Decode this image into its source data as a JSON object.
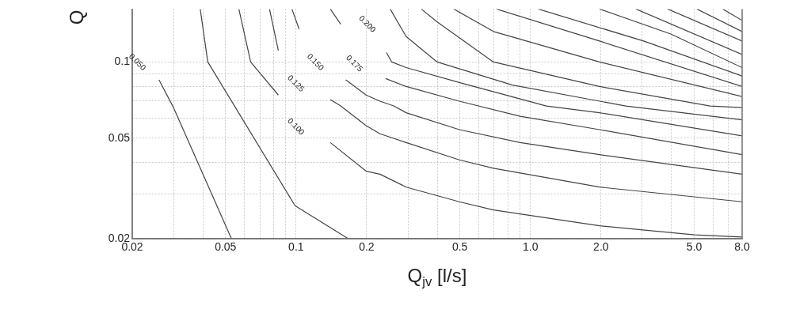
{
  "chart_data": {
    "type": "line",
    "xlabel": "Q$_{jv}$ [l/s]",
    "ylabel": "Q",
    "log": "xy",
    "grid": true,
    "marker": "none",
    "line_style": "solid",
    "legend": false,
    "xlim": [
      0.02,
      8.0
    ],
    "ylim": [
      0.02,
      0.162
    ],
    "xticks": [
      0.02,
      {
        "value": 0.03,
        "label": null
      },
      {
        "value": 0.04,
        "label": null
      },
      0.05,
      {
        "value": 0.06,
        "label": null
      },
      {
        "value": 0.07,
        "label": null
      },
      {
        "value": 0.08,
        "label": null
      },
      {
        "value": 0.09,
        "label": null
      },
      0.1,
      0.2,
      {
        "value": 0.3,
        "label": null
      },
      {
        "value": 0.4,
        "label": null
      },
      0.5,
      {
        "value": 0.6,
        "label": null
      },
      {
        "value": 0.7,
        "label": null
      },
      {
        "value": 0.8,
        "label": null
      },
      {
        "value": 0.9,
        "label": null
      },
      {
        "value": 1,
        "label": "1.0"
      },
      {
        "value": 2,
        "label": "2.0"
      },
      {
        "value": 3,
        "label": null
      },
      {
        "value": 4,
        "label": null
      },
      {
        "value": 5,
        "label": "5.0"
      },
      {
        "value": 6,
        "label": null
      },
      {
        "value": 7,
        "label": null
      },
      {
        "value": 8,
        "label": "8.0"
      }
    ],
    "yticks": [
      0.02,
      {
        "value": 0.03,
        "label": null
      },
      {
        "value": 0.04,
        "label": null
      },
      0.05,
      {
        "value": 0.06,
        "label": null
      },
      {
        "value": 0.07,
        "label": null
      },
      {
        "value": 0.08,
        "label": null
      },
      {
        "value": 0.09,
        "label": null
      },
      0.1
    ],
    "annotations": [
      "0.050",
      "0.100",
      "0.125",
      "0.150",
      "0.175",
      "0.200"
    ],
    "series": [
      {
        "color": "#444444",
        "x": [
          0.026,
          0.03,
          0.053
        ],
        "values": [
          0.085,
          0.066,
          0.02
        ]
      },
      {
        "color": "#444444",
        "x": [
          0.039,
          0.042,
          0.099,
          0.167
        ],
        "values": [
          0.162,
          0.1,
          0.027,
          0.02
        ]
      },
      {
        "color": "#444444",
        "x": [
          0.057,
          0.064,
          0.084
        ],
        "values": [
          0.162,
          0.1,
          0.074
        ]
      },
      {
        "color": "#444444",
        "x": [
          0.077,
          0.084
        ],
        "values": [
          0.162,
          0.111
        ]
      },
      {
        "color": "#444444",
        "x": [
          0.096,
          0.103
        ],
        "values": [
          0.162,
          0.135
        ]
      },
      {
        "color": "#444444",
        "x": [
          0.14,
          0.155
        ],
        "values": [
          0.162,
          0.141
        ]
      },
      {
        "color": "#444444",
        "x": [
          0.14,
          0.199,
          0.228,
          0.295,
          0.497,
          0.695,
          1.97,
          5.01,
          8.0
        ],
        "values": [
          0.048,
          0.037,
          0.036,
          0.032,
          0.028,
          0.026,
          0.0225,
          0.0207,
          0.0203
        ]
      },
      {
        "color": "#444444",
        "x": [
          0.14,
          0.155,
          0.199,
          0.228,
          0.295,
          0.497,
          0.695,
          1.97,
          8.0
        ],
        "values": [
          0.071,
          0.067,
          0.056,
          0.052,
          0.048,
          0.041,
          0.038,
          0.032,
          0.028
        ]
      },
      {
        "color": "#444444",
        "x": [
          0.163,
          0.199,
          0.228,
          0.261,
          0.295,
          0.497,
          0.904,
          1.97,
          8.0
        ],
        "values": [
          0.085,
          0.074,
          0.07,
          0.067,
          0.063,
          0.054,
          0.048,
          0.043,
          0.036
        ]
      },
      {
        "color": "#444444",
        "x": [
          0.241,
          0.295,
          0.497,
          0.904,
          1.97,
          8.0
        ],
        "values": [
          0.086,
          0.08,
          0.07,
          0.061,
          0.054,
          0.043
        ]
      },
      {
        "color": "#444444",
        "x": [
          0.243,
          0.256,
          0.295,
          0.497,
          1.17,
          1.97,
          8.0
        ],
        "values": [
          0.109,
          0.1,
          0.095,
          0.083,
          0.067,
          0.063,
          0.051
        ]
      },
      {
        "color": "#444444",
        "x": [
          0.252,
          0.295,
          0.4,
          0.838,
          2.55,
          8.0
        ],
        "values": [
          0.162,
          0.126,
          0.1,
          0.081,
          0.067,
          0.059
        ]
      },
      {
        "color": "#444444",
        "x": [
          0.342,
          0.4,
          0.695,
          1.97,
          5.85,
          8.0
        ],
        "values": [
          0.162,
          0.144,
          0.1,
          0.08,
          0.067,
          0.066
        ]
      },
      {
        "color": "#444444",
        "x": [
          0.471,
          0.695,
          1.97,
          8.0
        ],
        "values": [
          0.162,
          0.132,
          0.1,
          0.073
        ]
      },
      {
        "color": "#444444",
        "x": [
          0.716,
          1.97,
          8.0
        ],
        "values": [
          0.162,
          0.121,
          0.08
        ]
      },
      {
        "color": "#444444",
        "x": [
          1.08,
          3.04,
          8.0
        ],
        "values": [
          0.162,
          0.121,
          0.088
        ]
      },
      {
        "color": "#444444",
        "x": [
          1.97,
          3.97,
          8.0
        ],
        "values": [
          0.162,
          0.129,
          0.095
        ]
      },
      {
        "color": "#444444",
        "x": [
          2.82,
          8.0
        ],
        "values": [
          0.162,
          0.107
        ]
      },
      {
        "color": "#444444",
        "x": [
          3.85,
          8.0
        ],
        "values": [
          0.162,
          0.121
        ]
      },
      {
        "color": "#444444",
        "x": [
          5.13,
          8.0
        ],
        "values": [
          0.162,
          0.132
        ]
      },
      {
        "color": "#444444",
        "x": [
          6.62,
          8.0
        ],
        "values": [
          0.162,
          0.146
        ]
      }
    ]
  }
}
